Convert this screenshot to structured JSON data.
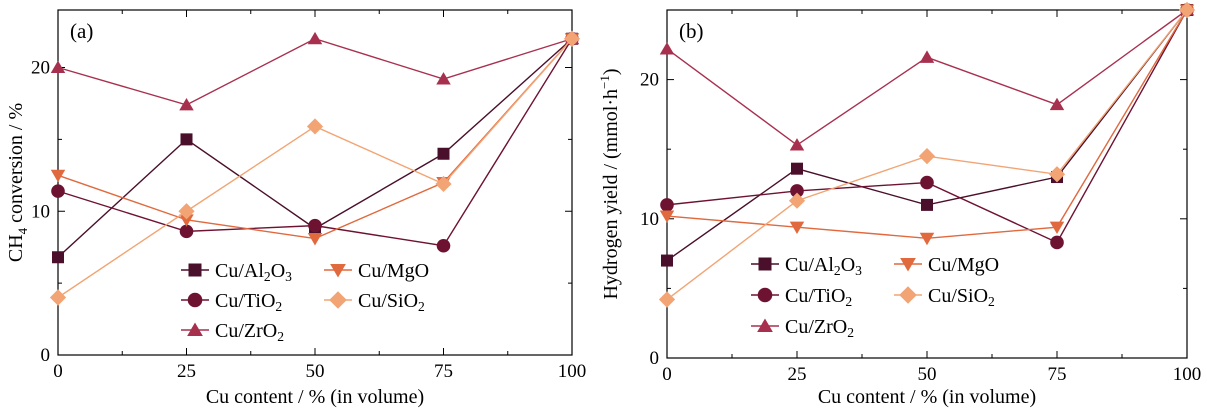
{
  "chart_data": [
    {
      "type": "line",
      "panel_label": "(a)",
      "ylabel_main": "CH",
      "ylabel_sub": "4",
      "ylabel_rest": " conversion / %",
      "xlabel": "Cu content / % (in volume)",
      "x": [
        0,
        25,
        50,
        75,
        100
      ],
      "xticks": [
        "0",
        "25",
        "50",
        "75",
        "100"
      ],
      "xlim": [
        0,
        100
      ],
      "ylim": [
        0,
        24
      ],
      "yticks": [
        "0",
        "10",
        "20"
      ],
      "yticks_values": [
        0,
        10,
        20
      ],
      "grid": false,
      "legend_placement": "lower-center",
      "series": [
        {
          "key": "al2o3",
          "label_main": "Cu/Al",
          "label_sub1": "2",
          "label_mid": "O",
          "label_sub2": "3",
          "marker": "square",
          "color": "#4a0f2a",
          "values": [
            6.8,
            15.0,
            8.8,
            14.0,
            22.0
          ]
        },
        {
          "key": "tio2",
          "label_main": "Cu/TiO",
          "label_sub1": "2",
          "label_mid": "",
          "label_sub2": "",
          "marker": "circle",
          "color": "#6e1232",
          "values": [
            11.4,
            8.6,
            9.0,
            7.6,
            22.0
          ]
        },
        {
          "key": "zro2",
          "label_main": "Cu/ZrO",
          "label_sub1": "2",
          "label_mid": "",
          "label_sub2": "",
          "marker": "triangle-up",
          "color": "#a8304f",
          "values": [
            20.0,
            17.4,
            22.0,
            19.2,
            22.0
          ]
        },
        {
          "key": "mgo",
          "label_main": "Cu/MgO",
          "label_sub1": "",
          "label_mid": "",
          "label_sub2": "",
          "marker": "triangle-down",
          "color": "#e0693e",
          "values": [
            12.5,
            9.4,
            8.1,
            12.0,
            22.0
          ]
        },
        {
          "key": "sio2",
          "label_main": "Cu/SiO",
          "label_sub1": "2",
          "label_mid": "",
          "label_sub2": "",
          "marker": "diamond",
          "color": "#f2a474",
          "values": [
            4.0,
            10.0,
            15.9,
            11.9,
            22.0
          ]
        }
      ]
    },
    {
      "type": "line",
      "panel_label": "(b)",
      "ylabel_main": "Hydrogen yield / (mmol·h",
      "ylabel_sup": "−1",
      "ylabel_rest": ")",
      "xlabel": "Cu content / % (in volume)",
      "x": [
        0,
        25,
        50,
        75,
        100
      ],
      "xticks": [
        "0",
        "25",
        "50",
        "75",
        "100"
      ],
      "xlim": [
        0,
        100
      ],
      "ylim": [
        0,
        25
      ],
      "yticks": [
        "0",
        "10",
        "20"
      ],
      "yticks_values": [
        0,
        10,
        20
      ],
      "grid": false,
      "legend_placement": "lower-center",
      "series": [
        {
          "key": "al2o3",
          "label_main": "Cu/Al",
          "label_sub1": "2",
          "label_mid": "O",
          "label_sub2": "3",
          "marker": "square",
          "color": "#4a0f2a",
          "values": [
            7.0,
            13.6,
            11.0,
            13.0,
            25.0
          ]
        },
        {
          "key": "tio2",
          "label_main": "Cu/TiO",
          "label_sub1": "2",
          "label_mid": "",
          "label_sub2": "",
          "marker": "circle",
          "color": "#6e1232",
          "values": [
            11.0,
            12.0,
            12.6,
            8.3,
            25.0
          ]
        },
        {
          "key": "zro2",
          "label_main": "Cu/ZrO",
          "label_sub1": "2",
          "label_mid": "",
          "label_sub2": "",
          "marker": "triangle-up",
          "color": "#a8304f",
          "values": [
            22.2,
            15.3,
            21.6,
            18.2,
            25.0
          ]
        },
        {
          "key": "mgo",
          "label_main": "Cu/MgO",
          "label_sub1": "",
          "label_mid": "",
          "label_sub2": "",
          "marker": "triangle-down",
          "color": "#e0693e",
          "values": [
            10.2,
            9.4,
            8.6,
            9.4,
            25.0
          ]
        },
        {
          "key": "sio2",
          "label_main": "Cu/SiO",
          "label_sub1": "2",
          "label_mid": "",
          "label_sub2": "",
          "marker": "diamond",
          "color": "#f2a474",
          "values": [
            4.2,
            11.3,
            14.5,
            13.2,
            25.0
          ]
        }
      ]
    }
  ]
}
